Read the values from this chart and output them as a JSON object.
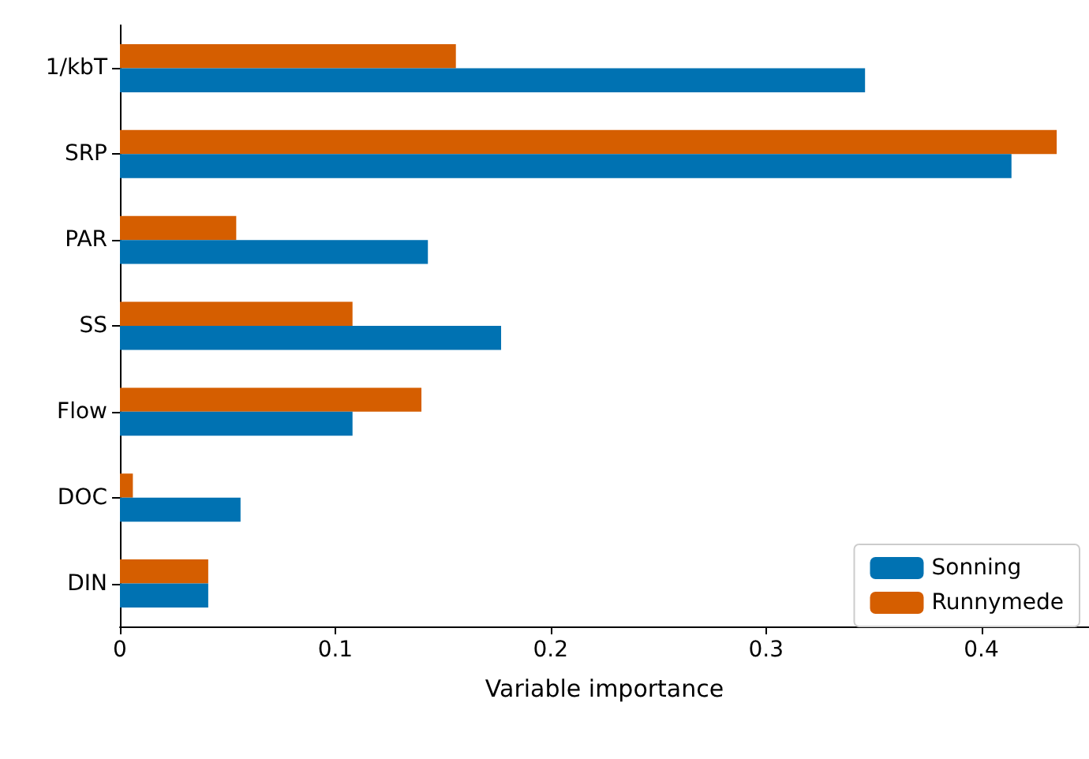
{
  "chart_data": {
    "type": "bar",
    "orientation": "horizontal",
    "xlabel": "Variable importance",
    "categories": [
      "1/kbT",
      "SRP",
      "PAR",
      "SS",
      "Flow",
      "DOC",
      "DIN"
    ],
    "series": [
      {
        "name": "Sonning",
        "color": "#0072b2",
        "values": [
          0.346,
          0.414,
          0.143,
          0.177,
          0.108,
          0.056,
          0.041
        ]
      },
      {
        "name": "Runnymede",
        "color": "#d55e00",
        "values": [
          0.156,
          0.435,
          0.054,
          0.108,
          0.14,
          0.006,
          0.041
        ]
      }
    ],
    "xlim": [
      0,
      0.45
    ],
    "xticks": [
      0,
      0.1,
      0.2,
      0.3,
      0.4
    ],
    "grid": false,
    "legend": "bottom right"
  }
}
